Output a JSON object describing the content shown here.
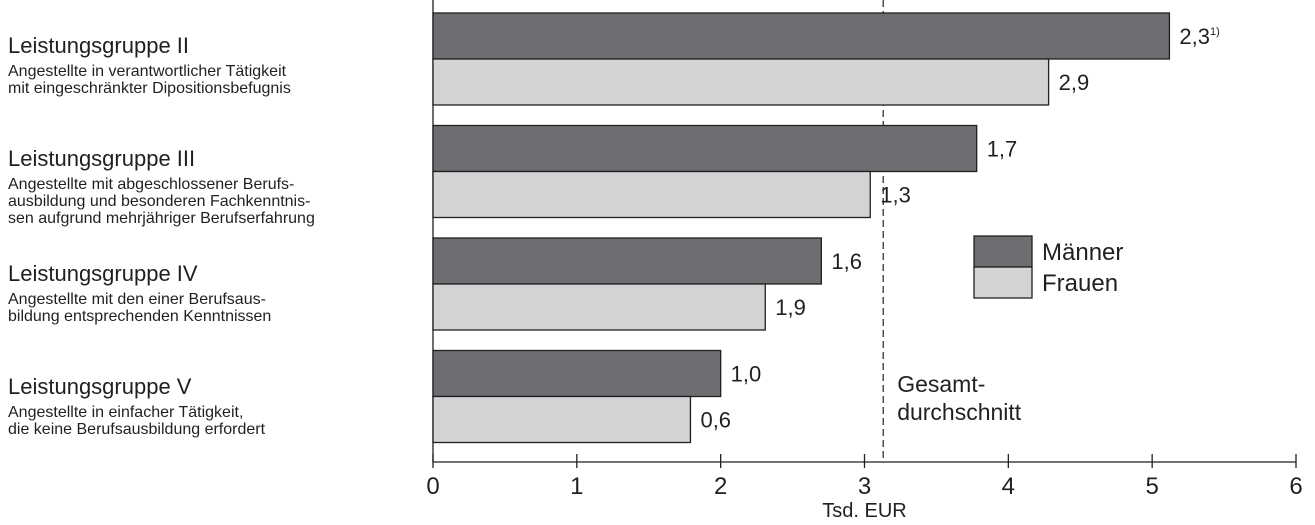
{
  "chart_data": {
    "type": "bar",
    "orientation": "horizontal",
    "categories": [
      {
        "title": "Leistungsgruppe II",
        "description": "Angestellte in verantwortlicher Tätigkeit\nmit eingeschränkter Dipositionsbefugnis"
      },
      {
        "title": "Leistungsgruppe III",
        "description": "Angestellte mit abgeschlossener Berufs-\nausbildung und besonderen Fachkenntnis-\nsen aufgrund mehrjähriger Berufserfahrung"
      },
      {
        "title": "Leistungsgruppe IV",
        "description": "Angestellte mit den einer Berufsaus-\nbildung entsprechenden Kenntnissen"
      },
      {
        "title": "Leistungsgruppe V",
        "description": "Angestellte in einfacher Tätigkeit,\ndie keine Berufsausbildung erfordert"
      }
    ],
    "series": [
      {
        "name": "Männer",
        "color": "#6d6e71",
        "values": [
          5.12,
          3.78,
          2.7,
          2.0
        ],
        "labels": [
          "2,3",
          "1,7",
          "1,6",
          "1,0"
        ],
        "label_footnotes": [
          "1)",
          "",
          "",
          ""
        ]
      },
      {
        "name": "Frauen",
        "color": "#d1d3d4",
        "values": [
          4.28,
          3.04,
          2.31,
          1.79
        ],
        "labels": [
          "2,9",
          "1,3",
          "1,9",
          "0,6"
        ],
        "label_footnotes": [
          "",
          "",
          "",
          ""
        ]
      }
    ],
    "reference_line": {
      "value": 3.13,
      "label_line1": "Gesamt-",
      "label_line2": "durchschnitt"
    },
    "xlabel": "Tsd. EUR",
    "xlim": [
      0,
      6
    ],
    "xticks": [
      0,
      1,
      2,
      3,
      4,
      5,
      6
    ],
    "legend_position": "right",
    "grid": false
  }
}
